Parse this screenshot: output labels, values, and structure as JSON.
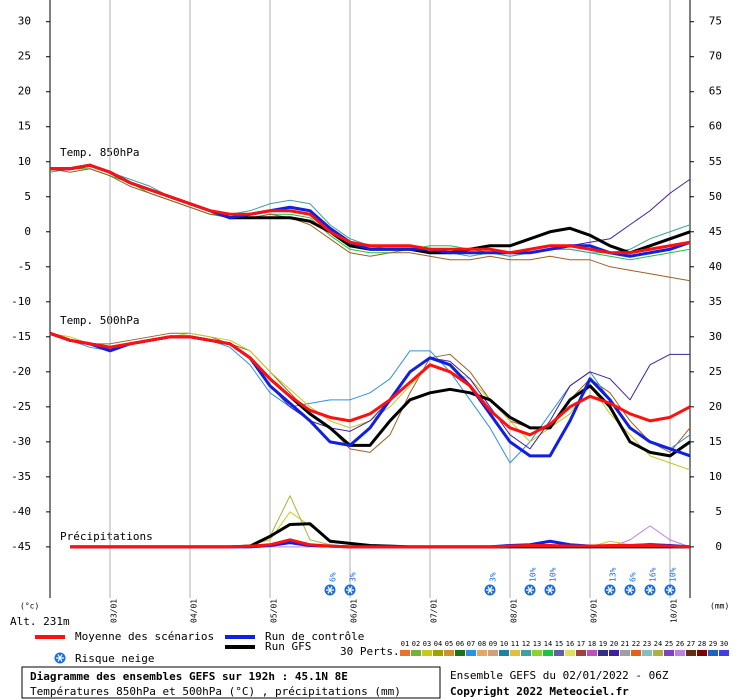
{
  "chart_data": {
    "type": "line",
    "categories": [
      null,
      null,
      null,
      "03/01",
      null,
      null,
      null,
      "04/01",
      null,
      null,
      null,
      "05/01",
      null,
      null,
      null,
      "06/01",
      null,
      null,
      null,
      "07/01",
      null,
      null,
      null,
      "08/01",
      null,
      null,
      null,
      "09/01",
      null,
      null,
      null,
      "10/01",
      null
    ],
    "ylim": [
      -52.3,
      33.1
    ],
    "yticks": [
      30,
      25,
      20,
      15,
      10,
      5,
      0,
      -5,
      -10,
      -15,
      -20,
      -25,
      -30,
      -35,
      -40,
      -45
    ],
    "y2lim": [
      -7.3,
      78.1
    ],
    "y2ticks": [
      75,
      70,
      65,
      60,
      55,
      50,
      45,
      40,
      35,
      30,
      25,
      20,
      15,
      10,
      5,
      0
    ],
    "ylabel": "(°c)",
    "y2label": "(mm)",
    "altitude": "Alt. 231m",
    "panel_labels": [
      "Temp. 850hPa",
      "Temp. 500hPa",
      "Précipitations"
    ],
    "grid": true,
    "series": [
      {
        "name": "Moyenne des scénarios",
        "color": "#ff1010",
        "line_width": 3,
        "values": [
          9,
          9,
          9.5,
          8.5,
          7,
          6,
          5,
          4,
          3,
          2.5,
          2.5,
          3,
          3,
          2.5,
          0,
          -1.5,
          -2,
          -2,
          -2,
          -2.5,
          -2.5,
          -2.5,
          -2.5,
          -3,
          -2.5,
          -2,
          -2,
          -2.5,
          -3,
          -3,
          -2.5,
          -2,
          -1.5
        ]
      },
      {
        "name": "Run de contrôle",
        "color": "#1020e0",
        "line_width": 3,
        "values": [
          9,
          9,
          9.5,
          8.5,
          7,
          6,
          5,
          4,
          3,
          2,
          2.5,
          3,
          3.5,
          3,
          0.5,
          -1.5,
          -2.5,
          -2.5,
          -2.5,
          -2.5,
          -3,
          -3,
          -3,
          -3,
          -3,
          -2.5,
          -2,
          -2,
          -3,
          -3.5,
          -3,
          -2.5,
          -1.5
        ]
      },
      {
        "name": "Run GFS",
        "color": "#000000",
        "line_width": 3,
        "values": [
          9,
          9,
          9.5,
          8.5,
          7,
          6,
          5,
          4,
          3,
          2,
          2,
          2,
          2,
          1.5,
          0,
          -2,
          -2.5,
          -2.5,
          -2.5,
          -3,
          -3,
          -2.5,
          -2,
          -2,
          -1,
          0,
          0.5,
          -0.5,
          -2,
          -3,
          -2,
          -1,
          0
        ]
      },
      {
        "color": "#ff1010",
        "line_width": 3,
        "values": [
          -14.5,
          -15.5,
          -16,
          -16.5,
          -16,
          -15.5,
          -15,
          -15,
          -15.5,
          -16,
          -18,
          -21,
          -23.5,
          -25.5,
          -26.5,
          -27,
          -26,
          -24,
          -21.5,
          -19,
          -20,
          -22,
          -25.5,
          -28,
          -29,
          -27.5,
          -25,
          -23.5,
          -24.5,
          -26,
          -27,
          -26.5,
          -25
        ]
      },
      {
        "color": "#1020e0",
        "line_width": 3,
        "values": [
          -14.5,
          -15.5,
          -16,
          -17,
          -16,
          -15.5,
          -15,
          -15,
          -15.5,
          -16,
          -18,
          -22,
          -24.5,
          -27,
          -30,
          -30.5,
          -28,
          -24,
          -20,
          -18,
          -19,
          -22,
          -26,
          -30,
          -32,
          -32,
          -27,
          -21,
          -24,
          -28,
          -30,
          -31,
          -32
        ]
      },
      {
        "color": "#000000",
        "line_width": 3,
        "values": [
          -14.5,
          -15.5,
          -16,
          -16.5,
          -16,
          -15.5,
          -15,
          -15,
          -15.5,
          -16,
          -18,
          -21,
          -23.5,
          -26,
          -28,
          -30.5,
          -30.5,
          -27,
          -24,
          -23,
          -22.5,
          -23,
          -24,
          -26.5,
          -28,
          -28,
          -24,
          -22,
          -25,
          -30,
          -31.5,
          -32,
          -30
        ]
      },
      {
        "color": "#ff1010",
        "line_width": 3,
        "axis": "y2",
        "values": [
          null,
          0,
          0,
          0,
          0,
          0,
          0,
          0,
          0,
          0,
          0.1,
          0.3,
          1,
          0.3,
          0.1,
          0,
          0,
          0,
          0,
          0,
          0,
          0,
          0,
          0.1,
          0.2,
          0.2,
          0.1,
          0.1,
          0.2,
          0.2,
          0.2,
          0.1,
          0
        ]
      },
      {
        "color": "#1020e0",
        "line_width": 3,
        "axis": "y2",
        "values": [
          null,
          0,
          0,
          0,
          0,
          0,
          0,
          0,
          0,
          0,
          0,
          0.2,
          0.6,
          0.2,
          0.1,
          0,
          0,
          0,
          0,
          0,
          0,
          0,
          0,
          0.2,
          0.3,
          0.8,
          0.3,
          0.1,
          0.1,
          0.2,
          0.3,
          0.2,
          0
        ]
      },
      {
        "color": "#000000",
        "line_width": 3,
        "axis": "y2",
        "values": [
          null,
          0,
          0,
          0,
          0,
          0,
          0,
          0,
          0,
          0,
          0.1,
          1.5,
          3.2,
          3.3,
          0.8,
          0.5,
          0.2,
          0.1,
          0,
          0,
          0,
          0,
          0,
          0,
          0,
          0,
          0,
          0,
          0,
          0,
          0,
          0,
          0
        ]
      },
      {
        "color": "#4020a0",
        "line_width": 1,
        "values": [
          9,
          9,
          9.5,
          8.5,
          7,
          6,
          5,
          4,
          3,
          2.5,
          2.5,
          3,
          3,
          2.5,
          0,
          -1.5,
          -2,
          -2,
          -2,
          -2.5,
          -2.5,
          -2.5,
          -2.5,
          -3,
          -2.5,
          -2,
          -2,
          -1.5,
          -1,
          1,
          3,
          5.5,
          7.5
        ]
      },
      {
        "color": "#a06020",
        "line_width": 1,
        "values": [
          9,
          8.5,
          9,
          8,
          6.5,
          5.5,
          4.5,
          3.5,
          2.5,
          2,
          2,
          2.5,
          2,
          1,
          -1,
          -3,
          -3.5,
          -3,
          -3,
          -3.5,
          -4,
          -4,
          -3.5,
          -4,
          -4,
          -3.5,
          -4,
          -4,
          -5,
          -5.5,
          -6,
          -6.5,
          -7
        ]
      },
      {
        "color": "#40a0a0",
        "line_width": 1,
        "values": [
          9,
          9,
          9.5,
          8.5,
          7.5,
          6.5,
          5,
          4,
          3,
          2.5,
          3,
          4,
          4.5,
          4,
          1,
          -1,
          -2,
          -2.5,
          -2.5,
          -3,
          -3,
          -3.5,
          -3,
          -3.5,
          -3,
          -2.5,
          -2.5,
          -3,
          -3,
          -2.5,
          -1,
          0,
          1
        ]
      },
      {
        "color": "#20c040",
        "line_width": 1,
        "values": [
          8.5,
          9,
          9,
          8,
          7,
          5.5,
          4.5,
          3.5,
          2.5,
          2.5,
          2,
          2.5,
          2.5,
          2,
          -0.5,
          -2.5,
          -3,
          -3,
          -2.5,
          -2,
          -2,
          -2.5,
          -3,
          -3.5,
          -3,
          -2.5,
          -2.5,
          -3,
          -3.5,
          -4,
          -3.5,
          -3,
          -2.5
        ]
      },
      {
        "color": "#4020a0",
        "line_width": 1,
        "values": [
          -14.5,
          -15.5,
          -16,
          -16.5,
          -16,
          -15.5,
          -15,
          -15,
          -15.5,
          -16,
          -18,
          -22,
          -25,
          -27,
          -28,
          -28.5,
          -27,
          -24,
          -20,
          -18,
          -18.5,
          -21,
          -25,
          -29,
          -31,
          -27,
          -22,
          -20,
          -21,
          -24,
          -19,
          -17.5,
          -17.5
        ]
      },
      {
        "color": "#c8c820",
        "line_width": 1,
        "values": [
          -14.5,
          -15,
          -16,
          -17,
          -16,
          -15.5,
          -15,
          -14.5,
          -15,
          -15.5,
          -17,
          -20,
          -22.5,
          -25,
          -27,
          -28,
          -27,
          -25,
          -22,
          -19,
          -20,
          -21,
          -24,
          -27,
          -30,
          -28,
          -26,
          -22,
          -26,
          -29,
          -32,
          -33,
          -34
        ]
      },
      {
        "color": "#3090e0",
        "line_width": 1,
        "values": [
          -14.5,
          -15.5,
          -16.5,
          -17,
          -16,
          -15.5,
          -15,
          -15,
          -15.5,
          -16.5,
          -19,
          -23,
          -25,
          -24.5,
          -24,
          -24,
          -23,
          -21,
          -17,
          -17,
          -20,
          -24,
          -28,
          -33,
          -30,
          -26,
          -22,
          -20,
          -24,
          -28,
          -30,
          -31,
          -29
        ]
      },
      {
        "color": "#a06020",
        "line_width": 1,
        "values": [
          -14.5,
          -15.5,
          -16,
          -16,
          -15.5,
          -15,
          -14.5,
          -14.5,
          -15,
          -16,
          -17,
          -20,
          -23,
          -26,
          -28,
          -31,
          -31.5,
          -29,
          -23,
          -18,
          -17.5,
          -20,
          -24,
          -27,
          -28,
          -28,
          -24,
          -21,
          -23,
          -27,
          -30,
          -31.5,
          -28
        ]
      },
      {
        "color": "#b0b040",
        "line_width": 1,
        "axis": "y2",
        "values": [
          null,
          0,
          0,
          0,
          0,
          0,
          0,
          0,
          0,
          0,
          0.2,
          1.5,
          7.3,
          1,
          0.3,
          0,
          0,
          0,
          0,
          0,
          0,
          0,
          0,
          0,
          0,
          0,
          0,
          0,
          0,
          0.2,
          0.5,
          0.3,
          0
        ]
      },
      {
        "color": "#c8c820",
        "line_width": 1,
        "axis": "y2",
        "values": [
          null,
          0,
          0,
          0,
          0,
          0,
          0,
          0,
          0,
          0,
          0.3,
          1,
          5,
          3,
          1,
          0.3,
          0,
          0,
          0,
          0,
          0,
          0,
          0,
          0,
          0,
          0,
          0,
          0,
          0.8,
          0.3,
          0,
          0,
          0
        ]
      },
      {
        "color": "#c080e0",
        "line_width": 1,
        "axis": "y2",
        "values": [
          null,
          0,
          0,
          0,
          0,
          0,
          0,
          0,
          0,
          0,
          0,
          0,
          0,
          0,
          0,
          0,
          0,
          0,
          0,
          0,
          0,
          0,
          0,
          0,
          0,
          0,
          0,
          0,
          0,
          1,
          3,
          1,
          0
        ]
      }
    ],
    "snow_risk": {
      "label": "Risque neige",
      "color": "#1a6ed8",
      "values": [
        null,
        null,
        null,
        null,
        null,
        null,
        null,
        null,
        null,
        null,
        null,
        null,
        null,
        null,
        6,
        3,
        null,
        null,
        null,
        null,
        null,
        null,
        3,
        null,
        10,
        10,
        null,
        null,
        13,
        6,
        16,
        10,
        null
      ],
      "value_labels": [
        null,
        null,
        null,
        null,
        null,
        null,
        null,
        null,
        null,
        null,
        null,
        null,
        null,
        null,
        "6%",
        "3%",
        null,
        null,
        null,
        null,
        null,
        null,
        "3%",
        null,
        "10%",
        "10%",
        null,
        null,
        "13%",
        "6%",
        "16%",
        "10%",
        null
      ]
    },
    "members_label": "30 Perts.",
    "members": [
      {
        "label": "01",
        "color": "#e8742a"
      },
      {
        "label": "02",
        "color": "#78b040"
      },
      {
        "label": "03",
        "color": "#c8c820"
      },
      {
        "label": "04",
        "color": "#a0a000"
      },
      {
        "label": "05",
        "color": "#d09030"
      },
      {
        "label": "06",
        "color": "#207020"
      },
      {
        "label": "07",
        "color": "#3090e0"
      },
      {
        "label": "08",
        "color": "#e0a860"
      },
      {
        "label": "09",
        "color": "#d0a080"
      },
      {
        "label": "10",
        "color": "#2080a0"
      },
      {
        "label": "11",
        "color": "#e0c040"
      },
      {
        "label": "12",
        "color": "#40a0a0"
      },
      {
        "label": "13",
        "color": "#90d030"
      },
      {
        "label": "14",
        "color": "#20c040"
      },
      {
        "label": "15",
        "color": "#6060a0"
      },
      {
        "label": "16",
        "color": "#e0e060"
      },
      {
        "label": "17",
        "color": "#a04040"
      },
      {
        "label": "18",
        "color": "#c050c0"
      },
      {
        "label": "19",
        "color": "#303080"
      },
      {
        "label": "20",
        "color": "#4020a0"
      },
      {
        "label": "21",
        "color": "#a0a0a0"
      },
      {
        "label": "22",
        "color": "#e06020"
      },
      {
        "label": "23",
        "color": "#80c0c0"
      },
      {
        "label": "24",
        "color": "#b0b040"
      },
      {
        "label": "25",
        "color": "#8040c0"
      },
      {
        "label": "26",
        "color": "#c080e0"
      },
      {
        "label": "27",
        "color": "#603010"
      },
      {
        "label": "28",
        "color": "#800000"
      },
      {
        "label": "29",
        "color": "#2060c0"
      },
      {
        "label": "30",
        "color": "#4040e0"
      }
    ],
    "footer": {
      "title": "Diagramme des ensembles GEFS sur 192h : 45.1N 8E",
      "subtitle": "Températures 850hPa et 500hPa (°C) , précipitations (mm)",
      "run": "Ensemble GEFS du 02/01/2022 - 06Z",
      "copyright": "Copyright 2022 Meteociel.fr"
    }
  }
}
